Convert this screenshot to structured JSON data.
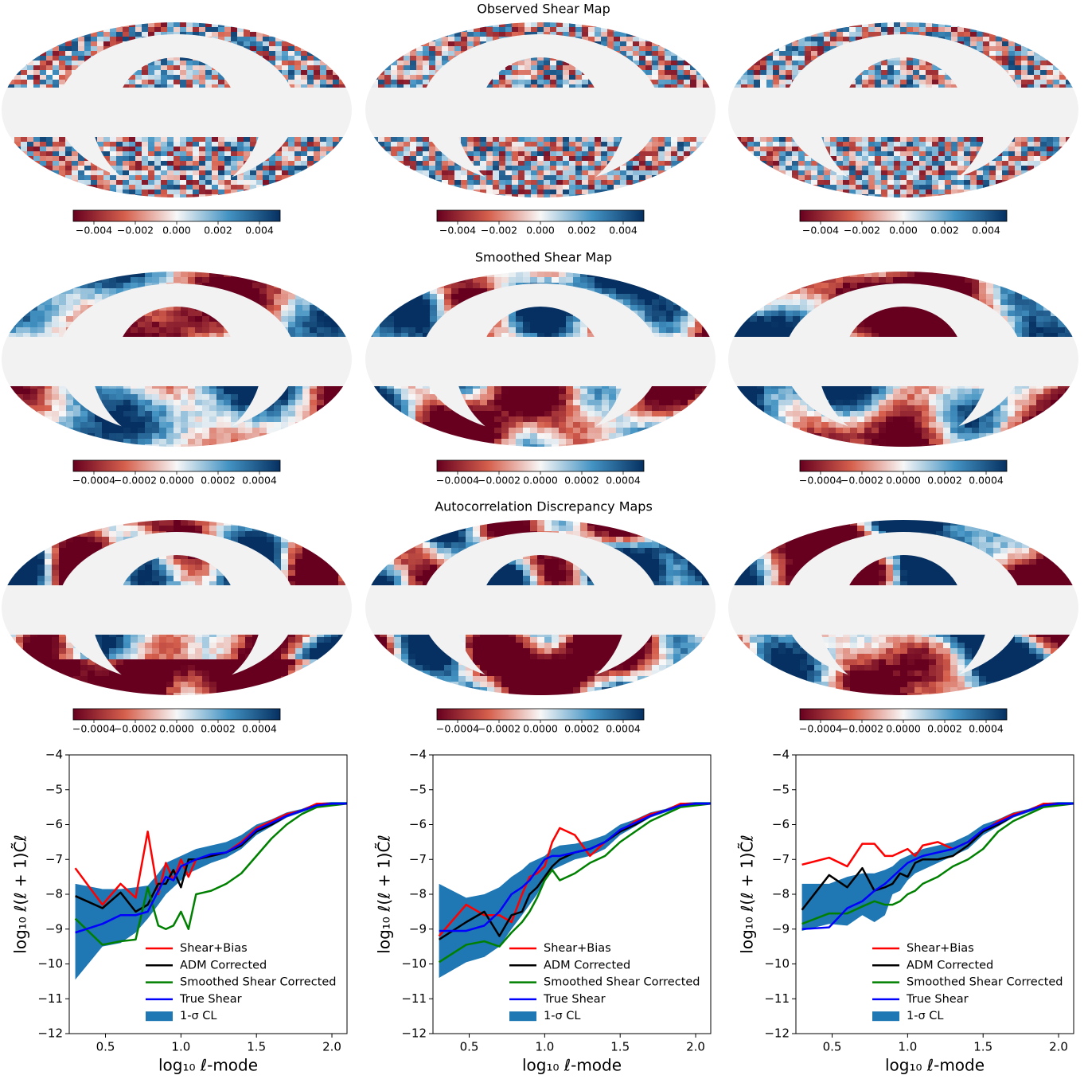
{
  "map_rows": [
    {
      "title": "Observed Shear Map",
      "colorbar": {
        "lim": [
          -0.005,
          0.005
        ],
        "ticks": [
          {
            "value": -0.004,
            "label": "−0.004"
          },
          {
            "value": -0.002,
            "label": "−0.002"
          },
          {
            "value": 0,
            "label": "0.000"
          },
          {
            "value": 0.002,
            "label": "0.002"
          },
          {
            "value": 0.004,
            "label": "0.004"
          }
        ]
      }
    },
    {
      "title": "Smoothed Shear Map",
      "colorbar": {
        "lim": [
          -0.0005,
          0.0005
        ],
        "ticks": [
          {
            "value": -0.0004,
            "label": "−0.0004"
          },
          {
            "value": -0.0002,
            "label": "−0.0002"
          },
          {
            "value": 0,
            "label": "0.0000"
          },
          {
            "value": 0.0002,
            "label": "0.0002"
          },
          {
            "value": 0.0004,
            "label": "0.0004"
          }
        ]
      }
    },
    {
      "title": "Autocorrelation Discrepancy Maps",
      "colorbar": {
        "lim": [
          -0.0005,
          0.0005
        ],
        "ticks": [
          {
            "value": -0.0004,
            "label": "−0.0004"
          },
          {
            "value": -0.0002,
            "label": "−0.0002"
          },
          {
            "value": 0,
            "label": "0.0000"
          },
          {
            "value": 0.0002,
            "label": "0.0002"
          },
          {
            "value": 0.0004,
            "label": "0.0004"
          }
        ]
      }
    }
  ],
  "chart_data": [
    {
      "type": "line",
      "xlabel": "log₁₀ ℓ-mode",
      "ylabel": "log₁₀ ℓ(ℓ + 1)C̃ℓ",
      "legend": "lower right",
      "x": [
        0.3,
        0.48,
        0.6,
        0.7,
        0.78,
        0.85,
        0.9,
        0.95,
        1.0,
        1.05,
        1.1,
        1.2,
        1.3,
        1.4,
        1.5,
        1.6,
        1.7,
        1.8,
        1.9,
        2.0,
        2.1
      ],
      "xlim": [
        0.26,
        2.1
      ],
      "ylim": [
        -12,
        -4
      ],
      "xticks": [
        0.5,
        {
          "value": 1,
          "label": "1.0"
        },
        1.5,
        {
          "value": 2,
          "label": "2.0"
        }
      ],
      "yticks": [
        {
          "value": -4,
          "label": "−4"
        },
        {
          "value": -5,
          "label": "−5"
        },
        {
          "value": -6,
          "label": "−6"
        },
        {
          "value": -7,
          "label": "−7"
        },
        {
          "value": -8,
          "label": "−8"
        },
        {
          "value": -9,
          "label": "−9"
        },
        {
          "value": -10,
          "label": "−10"
        },
        {
          "value": -11,
          "label": "−11"
        },
        {
          "value": -12,
          "label": "−12"
        }
      ],
      "band": {
        "name": "1-σ CL",
        "color": "#1f77b4",
        "lower": [
          -10.45,
          -9.5,
          -9.4,
          -9.1,
          -8.7,
          -8.3,
          -8.0,
          -7.8,
          -7.6,
          -7.4,
          -7.3,
          -7.1,
          -6.95,
          -6.7,
          -6.3,
          -6.05,
          -5.8,
          -5.65,
          -5.5,
          -5.42,
          -5.4
        ],
        "upper": [
          -7.7,
          -7.85,
          -7.85,
          -7.8,
          -7.75,
          -7.4,
          -7.1,
          -7.0,
          -6.9,
          -6.8,
          -6.7,
          -6.6,
          -6.5,
          -6.3,
          -6.0,
          -5.85,
          -5.65,
          -5.55,
          -5.38,
          -5.35,
          -5.35
        ]
      },
      "series": [
        {
          "name": "Shear+Bias",
          "color": "#ff0000",
          "values": [
            -7.25,
            -8.3,
            -7.7,
            -8.1,
            -6.2,
            -8.0,
            -7.1,
            -7.6,
            -7.0,
            -7.5,
            -7.0,
            -6.9,
            -6.8,
            -6.5,
            -6.1,
            -5.9,
            -5.7,
            -5.6,
            -5.4,
            -5.4,
            -5.4
          ]
        },
        {
          "name": "ADM Corrected",
          "color": "#000000",
          "values": [
            -8.05,
            -8.4,
            -7.95,
            -8.5,
            -8.3,
            -7.7,
            -7.7,
            -7.3,
            -7.8,
            -7.0,
            -7.0,
            -6.9,
            -6.8,
            -6.6,
            -6.2,
            -6.0,
            -5.75,
            -5.6,
            -5.45,
            -5.4,
            -5.4
          ]
        },
        {
          "name": "Smoothed Shear Corrected",
          "color": "#008000",
          "values": [
            -8.7,
            -9.45,
            -9.35,
            -9.3,
            -7.8,
            -8.9,
            -9.0,
            -8.9,
            -8.5,
            -9.0,
            -8.0,
            -7.9,
            -7.7,
            -7.4,
            -6.9,
            -6.4,
            -6.0,
            -5.7,
            -5.5,
            -5.45,
            -5.4
          ]
        },
        {
          "name": "True Shear",
          "color": "#0000ff",
          "values": [
            -9.1,
            -8.85,
            -8.6,
            -8.6,
            -8.5,
            -7.9,
            -7.5,
            -7.6,
            -7.2,
            -7.1,
            -7.0,
            -6.85,
            -6.8,
            -6.55,
            -6.15,
            -5.95,
            -5.75,
            -5.6,
            -5.45,
            -5.4,
            -5.4
          ]
        }
      ]
    },
    {
      "type": "line",
      "xlabel": "log₁₀ ℓ-mode",
      "ylabel": "log₁₀ ℓ(ℓ + 1)C̃ℓ",
      "legend": "lower right",
      "x": [
        0.3,
        0.48,
        0.6,
        0.7,
        0.78,
        0.85,
        0.9,
        0.95,
        1.0,
        1.05,
        1.1,
        1.2,
        1.3,
        1.4,
        1.5,
        1.6,
        1.7,
        1.8,
        1.9,
        2.0,
        2.1
      ],
      "xlim": [
        0.26,
        2.1
      ],
      "ylim": [
        -12,
        -4
      ],
      "xticks": [
        0.5,
        {
          "value": 1,
          "label": "1.0"
        },
        1.5,
        {
          "value": 2,
          "label": "2.0"
        }
      ],
      "yticks": [
        {
          "value": -4,
          "label": "−4"
        },
        {
          "value": -5,
          "label": "−5"
        },
        {
          "value": -6,
          "label": "−6"
        },
        {
          "value": -7,
          "label": "−7"
        },
        {
          "value": -8,
          "label": "−8"
        },
        {
          "value": -9,
          "label": "−9"
        },
        {
          "value": -10,
          "label": "−10"
        },
        {
          "value": -11,
          "label": "−11"
        },
        {
          "value": -12,
          "label": "−12"
        }
      ],
      "band": {
        "name": "1-σ CL",
        "color": "#1f77b4",
        "lower": [
          -10.4,
          -9.95,
          -9.8,
          -9.5,
          -9.0,
          -8.6,
          -8.3,
          -8.0,
          -7.6,
          -7.3,
          -7.2,
          -7.0,
          -6.9,
          -6.7,
          -6.3,
          -6.05,
          -5.8,
          -5.65,
          -5.5,
          -5.42,
          -5.4
        ],
        "upper": [
          -7.7,
          -8.1,
          -8.0,
          -7.8,
          -7.5,
          -7.3,
          -7.1,
          -7.0,
          -6.9,
          -6.7,
          -6.6,
          -6.55,
          -6.45,
          -6.3,
          -6.0,
          -5.85,
          -5.65,
          -5.55,
          -5.38,
          -5.35,
          -5.35
        ]
      },
      "series": [
        {
          "name": "Shear+Bias",
          "color": "#ff0000",
          "values": [
            -9.2,
            -8.3,
            -8.6,
            -8.6,
            -8.8,
            -8.0,
            -7.5,
            -7.4,
            -7.2,
            -6.5,
            -6.1,
            -6.3,
            -6.9,
            -6.5,
            -6.2,
            -5.9,
            -5.7,
            -5.6,
            -5.4,
            -5.4,
            -5.4
          ]
        },
        {
          "name": "ADM Corrected",
          "color": "#000000",
          "values": [
            -9.3,
            -8.8,
            -8.5,
            -9.2,
            -8.6,
            -8.5,
            -8.0,
            -7.8,
            -7.5,
            -7.2,
            -7.0,
            -6.8,
            -6.7,
            -6.5,
            -6.2,
            -6.0,
            -5.75,
            -5.6,
            -5.45,
            -5.4,
            -5.4
          ]
        },
        {
          "name": "Smoothed Shear Corrected",
          "color": "#008000",
          "values": [
            -9.95,
            -9.45,
            -9.35,
            -9.5,
            -9.1,
            -8.8,
            -8.5,
            -8.1,
            -7.6,
            -7.3,
            -7.6,
            -7.4,
            -7.1,
            -6.9,
            -6.5,
            -6.2,
            -5.9,
            -5.7,
            -5.5,
            -5.45,
            -5.4
          ]
        },
        {
          "name": "True Shear",
          "color": "#0000ff",
          "values": [
            -9.05,
            -9.05,
            -8.9,
            -8.5,
            -8.0,
            -7.8,
            -7.6,
            -7.3,
            -7.0,
            -6.9,
            -6.9,
            -6.8,
            -6.7,
            -6.5,
            -6.15,
            -5.95,
            -5.75,
            -5.6,
            -5.45,
            -5.4,
            -5.4
          ]
        }
      ]
    },
    {
      "type": "line",
      "xlabel": "log₁₀ ℓ-mode",
      "ylabel": "log₁₀ ℓ(ℓ + 1)C̃ℓ",
      "legend": "lower right",
      "x": [
        0.3,
        0.48,
        0.6,
        0.7,
        0.78,
        0.85,
        0.9,
        0.95,
        1.0,
        1.05,
        1.1,
        1.2,
        1.3,
        1.4,
        1.5,
        1.6,
        1.7,
        1.8,
        1.9,
        2.0,
        2.1
      ],
      "xlim": [
        0.26,
        2.1
      ],
      "ylim": [
        -12,
        -4
      ],
      "xticks": [
        0.5,
        {
          "value": 1,
          "label": "1.0"
        },
        1.5,
        {
          "value": 2,
          "label": "2.0"
        }
      ],
      "yticks": [
        {
          "value": -4,
          "label": "−4"
        },
        {
          "value": -5,
          "label": "−5"
        },
        {
          "value": -6,
          "label": "−6"
        },
        {
          "value": -7,
          "label": "−7"
        },
        {
          "value": -8,
          "label": "−8"
        },
        {
          "value": -9,
          "label": "−9"
        },
        {
          "value": -10,
          "label": "−10"
        },
        {
          "value": -11,
          "label": "−11"
        },
        {
          "value": -12,
          "label": "−12"
        }
      ],
      "band": {
        "name": "1-σ CL",
        "color": "#1f77b4",
        "lower": [
          -9.05,
          -8.85,
          -8.9,
          -8.6,
          -8.8,
          -8.6,
          -8.0,
          -7.9,
          -7.6,
          -7.4,
          -7.3,
          -7.1,
          -6.9,
          -6.7,
          -6.3,
          -6.05,
          -5.8,
          -5.65,
          -5.5,
          -5.42,
          -5.4
        ],
        "upper": [
          -7.7,
          -7.7,
          -7.5,
          -7.4,
          -7.4,
          -7.3,
          -7.2,
          -7.0,
          -6.9,
          -6.8,
          -6.7,
          -6.6,
          -6.5,
          -6.3,
          -6.0,
          -5.85,
          -5.65,
          -5.55,
          -5.38,
          -5.35,
          -5.35
        ]
      },
      "series": [
        {
          "name": "Shear+Bias",
          "color": "#ff0000",
          "values": [
            -7.15,
            -6.95,
            -7.2,
            -6.55,
            -6.55,
            -6.9,
            -6.9,
            -6.8,
            -6.7,
            -6.9,
            -6.6,
            -6.5,
            -6.7,
            -6.5,
            -6.2,
            -5.9,
            -5.7,
            -5.6,
            -5.4,
            -5.4,
            -5.4
          ]
        },
        {
          "name": "ADM Corrected",
          "color": "#000000",
          "values": [
            -8.45,
            -7.45,
            -7.8,
            -7.25,
            -7.9,
            -7.8,
            -7.7,
            -7.4,
            -7.5,
            -7.1,
            -7.0,
            -7.0,
            -6.9,
            -6.6,
            -6.2,
            -6.0,
            -5.75,
            -5.6,
            -5.45,
            -5.4,
            -5.4
          ]
        },
        {
          "name": "Smoothed Shear Corrected",
          "color": "#008000",
          "values": [
            -8.85,
            -8.55,
            -8.55,
            -8.35,
            -8.2,
            -8.3,
            -8.3,
            -8.2,
            -8.0,
            -7.9,
            -7.7,
            -7.5,
            -7.2,
            -7.0,
            -6.7,
            -6.2,
            -5.9,
            -5.7,
            -5.5,
            -5.45,
            -5.4
          ]
        },
        {
          "name": "True Shear",
          "color": "#0000ff",
          "values": [
            -9.0,
            -8.95,
            -8.4,
            -8.2,
            -7.9,
            -7.7,
            -7.5,
            -7.3,
            -7.1,
            -7.0,
            -6.9,
            -6.8,
            -6.7,
            -6.5,
            -6.15,
            -5.95,
            -5.75,
            -5.6,
            -5.45,
            -5.4,
            -5.4
          ]
        }
      ]
    }
  ]
}
